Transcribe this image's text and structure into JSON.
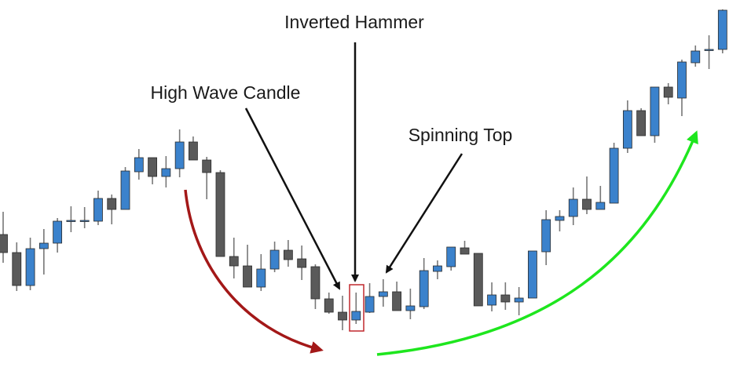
{
  "chart_data": {
    "type": "candlestick",
    "title": "",
    "xlabel": "",
    "ylabel": "",
    "grid": false,
    "colors": {
      "bullish": "#3b82cc",
      "bearish": "#5a5a5a",
      "outline": "#2b2b2b",
      "downtrend_arrow": "#a31818",
      "uptrend_arrow": "#1ee61e",
      "highlight_box": "#c0282d",
      "annotation_arrow": "#111111"
    },
    "candles_ohlc": [
      [
        201,
        230,
        165,
        178
      ],
      [
        178,
        191,
        129,
        136
      ],
      [
        136,
        197,
        130,
        183
      ],
      [
        183,
        208,
        150,
        190
      ],
      [
        190,
        222,
        178,
        218
      ],
      [
        218,
        237,
        204,
        219
      ],
      [
        219,
        236,
        209,
        219
      ],
      [
        218,
        257,
        213,
        247
      ],
      [
        247,
        252,
        214,
        233
      ],
      [
        233,
        287,
        233,
        282
      ],
      [
        281,
        310,
        271,
        299
      ],
      [
        299,
        299,
        265,
        275
      ],
      [
        275,
        301,
        261,
        285
      ],
      [
        285,
        335,
        274,
        319
      ],
      [
        319,
        326,
        296,
        296
      ],
      [
        296,
        300,
        246,
        280
      ],
      [
        280,
        283,
        173,
        173
      ],
      [
        173,
        197,
        145,
        161
      ],
      [
        161,
        188,
        134,
        134
      ],
      [
        134,
        176,
        129,
        157
      ],
      [
        157,
        192,
        153,
        181
      ],
      [
        181,
        194,
        160,
        169
      ],
      [
        170,
        187,
        143,
        159
      ],
      [
        160,
        163,
        106,
        119
      ],
      [
        119,
        127,
        100,
        102
      ],
      [
        102,
        123,
        79,
        92
      ],
      [
        92,
        127,
        87,
        103
      ],
      [
        102,
        139,
        101,
        122
      ],
      [
        122,
        144,
        109,
        128
      ],
      [
        128,
        141,
        104,
        104
      ],
      [
        104,
        132,
        93,
        110
      ],
      [
        109,
        171,
        106,
        155
      ],
      [
        154,
        168,
        144,
        161
      ],
      [
        160,
        185,
        155,
        185
      ],
      [
        184,
        193,
        176,
        176
      ],
      [
        177,
        177,
        110,
        110
      ],
      [
        111,
        140,
        103,
        124
      ],
      [
        124,
        140,
        105,
        115
      ],
      [
        115,
        134,
        98,
        120
      ],
      [
        120,
        180,
        120,
        180
      ],
      [
        179,
        232,
        162,
        220
      ],
      [
        219,
        232,
        205,
        224
      ],
      [
        224,
        261,
        213,
        246
      ],
      [
        246,
        275,
        227,
        233
      ],
      [
        233,
        263,
        233,
        242
      ],
      [
        241,
        318,
        241,
        311
      ],
      [
        311,
        372,
        305,
        359
      ],
      [
        359,
        362,
        327,
        327
      ],
      [
        327,
        389,
        318,
        389
      ],
      [
        389,
        394,
        367,
        376
      ],
      [
        375,
        424,
        352,
        421
      ],
      [
        420,
        442,
        415,
        435
      ],
      [
        437,
        455,
        412,
        437
      ],
      [
        437,
        488,
        432,
        487
      ]
    ],
    "annotations": [
      {
        "text": "Inverted Hammer",
        "candle_index": 26
      },
      {
        "text": "High Wave Candle",
        "candle_index": 24
      },
      {
        "text": "Spinning Top",
        "candle_index": 28
      }
    ],
    "trend_arrows": [
      {
        "trend": "down",
        "color": "#a31818"
      },
      {
        "trend": "up",
        "color": "#1ee61e"
      }
    ]
  }
}
